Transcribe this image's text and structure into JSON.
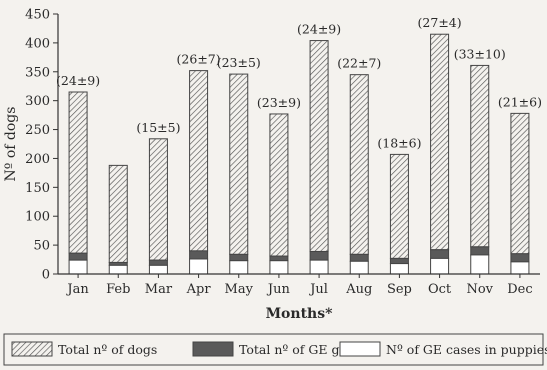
{
  "chart_data": {
    "type": "bar",
    "categories": [
      "Jan",
      "Feb",
      "Mar",
      "Apr",
      "May",
      "Jun",
      "Jul",
      "Aug",
      "Sep",
      "Oct",
      "Nov",
      "Dec"
    ],
    "xlabel": "Months*",
    "ylabel": "Nº of dogs",
    "ylim": [
      0,
      450
    ],
    "yticks": [
      0,
      50,
      100,
      150,
      200,
      250,
      300,
      350,
      400,
      450
    ],
    "series": [
      {
        "name": "Total nº of dogs",
        "values": [
          315,
          188,
          234,
          352,
          346,
          277,
          404,
          345,
          207,
          415,
          361,
          278
        ]
      },
      {
        "name": "Total nº of GE gases",
        "values": [
          36,
          20,
          24,
          40,
          34,
          31,
          39,
          34,
          27,
          42,
          47,
          35
        ]
      },
      {
        "name": "Nº of GE cases in puppies",
        "values": [
          24,
          15,
          15,
          26,
          23,
          23,
          24,
          22,
          18,
          27,
          33,
          21
        ]
      }
    ],
    "annotations": [
      "(24±9)",
      "",
      "(15±5)",
      "(26±7)",
      "(23±5)",
      "(23±9)",
      "(24±9)",
      "(22±7)",
      "(18±6)",
      "(27±4)",
      "(33±10)",
      "(21±6)"
    ],
    "legend_position": "bottom",
    "grid": false
  }
}
